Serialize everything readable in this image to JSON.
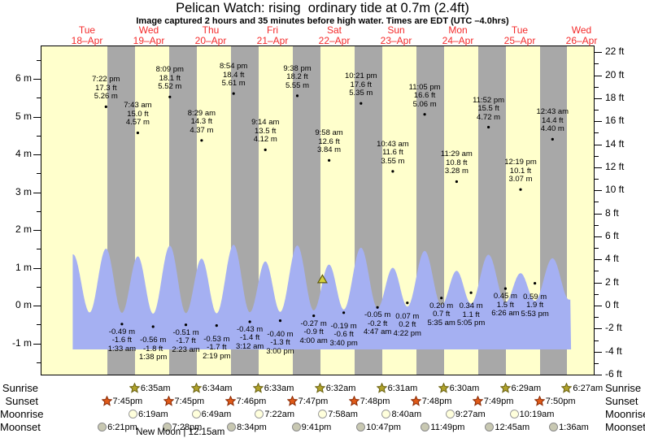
{
  "title": "Pelican Watch: rising  ordinary tide at 0.7m (2.4ft)",
  "subtitle": "Image captured 2 hours and 35 minutes before high water. Times are EDT (UTC –4.0hrs)",
  "colors": {
    "day_band": "#ffffcc",
    "night_band": "#a8a8a8",
    "tide_fill": "#a5b0f2",
    "date_text": "#f42a2a",
    "sunrise_star_fill": "#b0a22a",
    "sunrise_star_stroke": "#6e6616",
    "sunset_star_fill": "#e05a18",
    "sunset_star_stroke": "#8e2e08",
    "moonrise_fill": "#ffffdc",
    "moonrise_border": "#9a9a9a",
    "moonset_fill": "#c8c8b2",
    "moonset_border": "#8a8a8a",
    "marker_fill": "#d6d23e",
    "marker_stroke": "#5f5a10"
  },
  "chart_data": {
    "type": "area",
    "title": "Pelican Watch: rising  ordinary tide at 0.7m (2.4ft)",
    "x_days": [
      {
        "name": "Tue",
        "date": "18–Apr"
      },
      {
        "name": "Wed",
        "date": "19–Apr"
      },
      {
        "name": "Thu",
        "date": "20–Apr"
      },
      {
        "name": "Fri",
        "date": "21–Apr"
      },
      {
        "name": "Sat",
        "date": "22–Apr"
      },
      {
        "name": "Sun",
        "date": "23–Apr"
      },
      {
        "name": "Mon",
        "date": "24–Apr"
      },
      {
        "name": "Tue",
        "date": "25–Apr"
      },
      {
        "name": "Wed",
        "date": "26–Apr"
      }
    ],
    "y_left": {
      "unit": "m",
      "range": [
        -1.85,
        6.88
      ],
      "ticks": [
        {
          "value": 6,
          "label": "6 m"
        },
        {
          "value": 5,
          "label": "5 m"
        },
        {
          "value": 4,
          "label": "4 m"
        },
        {
          "value": 3,
          "label": "3 m"
        },
        {
          "value": 2,
          "label": "2 m"
        },
        {
          "value": 1,
          "label": "1 m"
        },
        {
          "value": 0,
          "label": "0 m"
        },
        {
          "value": -1,
          "label": "-1 m"
        }
      ]
    },
    "y_right": {
      "unit": "ft",
      "range": [
        -6.1,
        22.6
      ],
      "ticks": [
        {
          "value": 22,
          "label": "22 ft"
        },
        {
          "value": 20,
          "label": "20 ft"
        },
        {
          "value": 18,
          "label": "18 ft"
        },
        {
          "value": 16,
          "label": "16 ft"
        },
        {
          "value": 14,
          "label": "14 ft"
        },
        {
          "value": 12,
          "label": "12 ft"
        },
        {
          "value": 10,
          "label": "10 ft"
        },
        {
          "value": 8,
          "label": "8 ft"
        },
        {
          "value": 6,
          "label": "6 ft"
        },
        {
          "value": 4,
          "label": "4 ft"
        },
        {
          "value": 2,
          "label": "2 ft"
        },
        {
          "value": 0,
          "label": "0 ft"
        },
        {
          "value": -2,
          "label": "-2 ft"
        },
        {
          "value": -4,
          "label": "-4 ft"
        },
        {
          "value": -6,
          "label": "-6 ft"
        }
      ]
    },
    "extremes": [
      {
        "day": 0,
        "time": "6:36 am",
        "h": 4.75,
        "type": "high",
        "hidden": true
      },
      {
        "day": 0,
        "time": "1:00 pm",
        "h": -0.45,
        "type": "low",
        "hidden": true
      },
      {
        "day": 0,
        "time": "7:22 pm",
        "h": 5.26,
        "ft": "17.3 ft",
        "m": "5.26 m",
        "type": "high"
      },
      {
        "day": 1,
        "time": "1:33 am",
        "h": -0.49,
        "m": "-0.49 m",
        "ft": "-1.6 ft",
        "type": "low"
      },
      {
        "day": 1,
        "time": "7:43 am",
        "h": 4.57,
        "ft": "15.0 ft",
        "m": "4.57 m",
        "type": "high"
      },
      {
        "day": 1,
        "time": "1:38 pm",
        "h": -0.56,
        "m": "-0.56 m",
        "ft": "-1.8 ft",
        "type": "low"
      },
      {
        "day": 1,
        "time": "8:09 pm",
        "h": 5.52,
        "ft": "18.1 ft",
        "m": "5.52 m",
        "type": "high"
      },
      {
        "day": 2,
        "time": "2:23 am",
        "h": -0.51,
        "m": "-0.51 m",
        "ft": "-1.7 ft",
        "type": "low"
      },
      {
        "day": 2,
        "time": "8:29 am",
        "h": 4.37,
        "ft": "14.3 ft",
        "m": "4.37 m",
        "type": "high"
      },
      {
        "day": 2,
        "time": "2:19 pm",
        "h": -0.53,
        "m": "-0.53 m",
        "ft": "-1.7 ft",
        "type": "low"
      },
      {
        "day": 2,
        "time": "8:54 pm",
        "h": 5.61,
        "ft": "18.4 ft",
        "m": "5.61 m",
        "type": "high"
      },
      {
        "day": 3,
        "time": "3:12 am",
        "h": -0.43,
        "m": "-0.43 m",
        "ft": "-1.4 ft",
        "type": "low"
      },
      {
        "day": 3,
        "time": "9:14 am",
        "h": 4.12,
        "ft": "13.5 ft",
        "m": "4.12 m",
        "type": "high"
      },
      {
        "day": 3,
        "time": "3:00 pm",
        "h": -0.4,
        "m": "-0.40 m",
        "ft": "-1.3 ft",
        "type": "low"
      },
      {
        "day": 3,
        "time": "9:38 pm",
        "h": 5.55,
        "ft": "18.2 ft",
        "m": "5.55 m",
        "type": "high"
      },
      {
        "day": 4,
        "time": "4:00 am",
        "h": -0.27,
        "m": "-0.27 m",
        "ft": "-0.9 ft",
        "type": "low"
      },
      {
        "day": 4,
        "time": "9:58 am",
        "h": 3.84,
        "ft": "12.6 ft",
        "m": "3.84 m",
        "type": "high"
      },
      {
        "day": 4,
        "time": "3:40 pm",
        "h": -0.19,
        "m": "-0.19 m",
        "ft": "-0.6 ft",
        "type": "low"
      },
      {
        "day": 4,
        "time": "10:21 pm",
        "h": 5.35,
        "ft": "17.6 ft",
        "m": "5.35 m",
        "type": "high"
      },
      {
        "day": 5,
        "time": "4:47 am",
        "h": -0.05,
        "m": "-0.05 m",
        "ft": "-0.2 ft",
        "type": "low"
      },
      {
        "day": 5,
        "time": "10:43 am",
        "h": 3.55,
        "ft": "11.6 ft",
        "m": "3.55 m",
        "type": "high"
      },
      {
        "day": 5,
        "time": "4:22 pm",
        "h": 0.07,
        "m": "0.07 m",
        "ft": "0.2 ft",
        "type": "low"
      },
      {
        "day": 5,
        "time": "11:05 pm",
        "h": 5.06,
        "ft": "16.6 ft",
        "m": "5.06 m",
        "type": "high"
      },
      {
        "day": 6,
        "time": "5:35 am",
        "h": 0.2,
        "m": "0.20 m",
        "ft": "0.7 ft",
        "type": "low"
      },
      {
        "day": 6,
        "time": "11:29 am",
        "h": 3.28,
        "ft": "10.8 ft",
        "m": "3.28 m",
        "type": "high"
      },
      {
        "day": 6,
        "time": "5:05 pm",
        "h": 0.34,
        "m": "0.34 m",
        "ft": "1.1 ft",
        "type": "low"
      },
      {
        "day": 6,
        "time": "11:52 pm",
        "h": 4.72,
        "ft": "15.5 ft",
        "m": "4.72 m",
        "type": "high"
      },
      {
        "day": 7,
        "time": "6:26 am",
        "h": 0.45,
        "m": "0.45 m",
        "ft": "1.5 ft",
        "type": "low"
      },
      {
        "day": 7,
        "time": "12:19 pm",
        "h": 3.07,
        "ft": "10.1 ft",
        "m": "3.07 m",
        "type": "high"
      },
      {
        "day": 7,
        "time": "5:53 pm",
        "h": 0.59,
        "m": "0.59 m",
        "ft": "1.9 ft",
        "type": "low"
      },
      {
        "day": 8,
        "time": "12:43 am",
        "h": 4.4,
        "ft": "14.4 ft",
        "m": "4.40 m",
        "type": "high"
      },
      {
        "day": 8,
        "time": "7:10 am",
        "h": 0.7,
        "type": "low",
        "hidden": true
      }
    ],
    "current_marker": {
      "day": 4,
      "time": "7:23 am",
      "height_m": 0.7,
      "height_ft": 2.4,
      "state": "rising"
    }
  },
  "almanac": {
    "rows": [
      {
        "label": "Sunrise",
        "icon": "sunrise-star",
        "events": [
          {
            "day": 1,
            "time": "6:35am"
          },
          {
            "day": 2,
            "time": "6:34am"
          },
          {
            "day": 3,
            "time": "6:33am"
          },
          {
            "day": 4,
            "time": "6:32am"
          },
          {
            "day": 5,
            "time": "6:31am"
          },
          {
            "day": 6,
            "time": "6:30am"
          },
          {
            "day": 7,
            "time": "6:29am"
          },
          {
            "day": 8,
            "time": "6:27am"
          }
        ]
      },
      {
        "label": "Sunset",
        "icon": "sunset-star",
        "events": [
          {
            "day": 0,
            "time": "7:45pm"
          },
          {
            "day": 1,
            "time": "7:45pm"
          },
          {
            "day": 2,
            "time": "7:46pm"
          },
          {
            "day": 3,
            "time": "7:47pm"
          },
          {
            "day": 4,
            "time": "7:48pm"
          },
          {
            "day": 5,
            "time": "7:48pm"
          },
          {
            "day": 6,
            "time": "7:49pm"
          },
          {
            "day": 7,
            "time": "7:50pm"
          }
        ]
      },
      {
        "label": "Moonrise",
        "icon": "moonrise-circle",
        "events": [
          {
            "day": 1,
            "time": "6:19am"
          },
          {
            "day": 2,
            "time": "6:49am"
          },
          {
            "day": 3,
            "time": "7:22am"
          },
          {
            "day": 4,
            "time": "7:58am"
          },
          {
            "day": 5,
            "time": "8:40am"
          },
          {
            "day": 6,
            "time": "9:27am"
          },
          {
            "day": 7,
            "time": "10:19am"
          }
        ]
      },
      {
        "label": "Moonset",
        "icon": "moonset-circle",
        "events": [
          {
            "day": 0,
            "time": "6:21pm"
          },
          {
            "day": 1,
            "time": "7:28pm"
          },
          {
            "day": 2,
            "time": "8:34pm"
          },
          {
            "day": 3,
            "time": "9:41pm"
          },
          {
            "day": 4,
            "time": "10:47pm"
          },
          {
            "day": 5,
            "time": "11:49pm"
          },
          {
            "day": 7,
            "time": "12:45am"
          },
          {
            "day": 8,
            "time": "1:36am"
          }
        ]
      }
    ],
    "new_moon": {
      "text": "New Moon | 12:15am",
      "day": 2,
      "time": "12:15am"
    }
  }
}
